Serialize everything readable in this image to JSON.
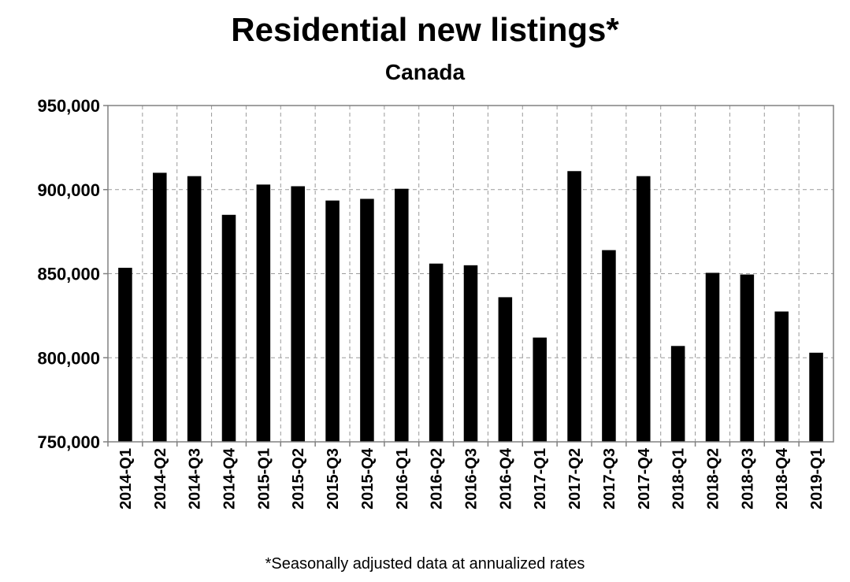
{
  "chart_data": {
    "type": "bar",
    "title": "Residential new listings*",
    "subtitle": "Canada",
    "footnote": "*Seasonally adjusted data at annualized rates",
    "xlabel": "",
    "ylabel": "",
    "ylim": [
      750000,
      950000
    ],
    "yticks": [
      750000,
      800000,
      850000,
      900000,
      950000
    ],
    "ytick_labels": [
      "750,000",
      "800,000",
      "850,000",
      "900,000",
      "950,000"
    ],
    "grid": "dashed",
    "bar_color": "#000000",
    "categories": [
      "2014-Q1",
      "2014-Q2",
      "2014-Q3",
      "2014-Q4",
      "2015-Q1",
      "2015-Q2",
      "2015-Q3",
      "2015-Q4",
      "2016-Q1",
      "2016-Q2",
      "2016-Q3",
      "2016-Q4",
      "2017-Q1",
      "2017-Q2",
      "2017-Q3",
      "2017-Q4",
      "2018-Q1",
      "2018-Q2",
      "2018-Q3",
      "2018-Q4",
      "2019-Q1"
    ],
    "values": [
      853500,
      910000,
      908000,
      885000,
      903000,
      902000,
      893500,
      894500,
      900500,
      856000,
      855000,
      836000,
      812000,
      911000,
      864000,
      908000,
      807000,
      850500,
      849500,
      827500,
      803000
    ]
  }
}
